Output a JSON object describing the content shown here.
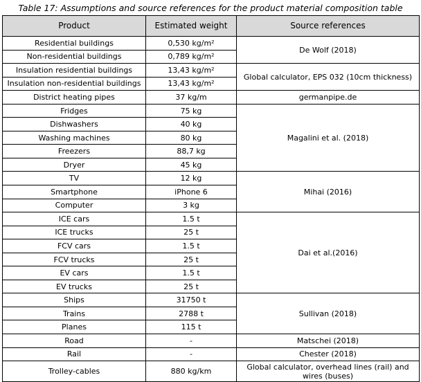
{
  "caption": "Table 17: Assumptions and source references for the product material composition table",
  "headers": {
    "product": "Product",
    "weight": "Estimated weight",
    "refs": "Source references"
  },
  "rows": [
    {
      "product": "Residential buildings",
      "weight": "0,530 kg/m²",
      "ref": "De Wolf (2018)",
      "span": 2
    },
    {
      "product": "Non-residential buildings",
      "weight": "0,789 kg/m²"
    },
    {
      "product": "Insulation residential buildings",
      "weight": "13,43 kg/m²",
      "ref": "Global calculator, EPS 032 (10cm thickness)",
      "span": 2
    },
    {
      "product": "Insulation non-residential buildings",
      "weight": "13,43 kg/m²"
    },
    {
      "product": "District heating pipes",
      "weight": "37 kg/m",
      "ref": "germanpipe.de",
      "span": 1
    },
    {
      "product": "Fridges",
      "weight": "75 kg",
      "ref": "Magalini et al. (2018)",
      "span": 5
    },
    {
      "product": "Dishwashers",
      "weight": "40 kg"
    },
    {
      "product": "Washing machines",
      "weight": "80 kg"
    },
    {
      "product": "Freezers",
      "weight": "88,7 kg"
    },
    {
      "product": "Dryer",
      "weight": "45 kg"
    },
    {
      "product": "TV",
      "weight": "12 kg",
      "ref": "Mihai (2016)",
      "span": 3
    },
    {
      "product": "Smartphone",
      "weight": "iPhone 6"
    },
    {
      "product": "Computer",
      "weight": "3 kg"
    },
    {
      "product": "ICE cars",
      "weight": "1.5 t",
      "ref": "Dai et al.(2016)",
      "span": 6
    },
    {
      "product": "ICE trucks",
      "weight": "25 t"
    },
    {
      "product": "FCV cars",
      "weight": "1.5 t"
    },
    {
      "product": "FCV trucks",
      "weight": "25 t"
    },
    {
      "product": "EV cars",
      "weight": "1.5 t"
    },
    {
      "product": "EV trucks",
      "weight": "25 t"
    },
    {
      "product": "Ships",
      "weight": "31750 t",
      "ref": "Sullivan (2018)",
      "span": 3
    },
    {
      "product": "Trains",
      "weight": "2788 t"
    },
    {
      "product": "Planes",
      "weight": "115 t"
    },
    {
      "product": "Road",
      "weight": "-",
      "ref": "Matschei (2018)",
      "span": 1
    },
    {
      "product": "Rail",
      "weight": "-",
      "ref": "Chester (2018)",
      "span": 1
    },
    {
      "product": "Trolley-cables",
      "weight": "880 kg/km",
      "ref": "Global calculator, overhead lines (rail) and wires (buses)",
      "span": 1,
      "tall": true
    }
  ]
}
